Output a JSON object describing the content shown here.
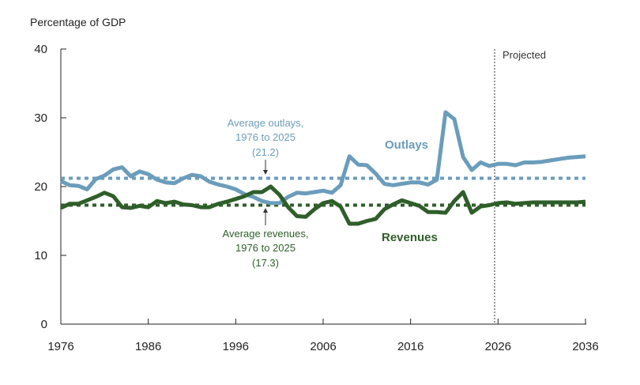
{
  "chart_data": {
    "type": "line",
    "ylabel": "Percentage of GDP",
    "xlim": [
      1976,
      2036
    ],
    "ylim": [
      0,
      40
    ],
    "xticks": [
      "1976",
      "1986",
      "1996",
      "2006",
      "2016",
      "2026",
      "2036"
    ],
    "yticks": [
      "0",
      "10",
      "20",
      "30",
      "40"
    ],
    "projected_label": "Projected",
    "projected_start": 2025.6,
    "colors": {
      "outlays": "#6b9dbb",
      "revenues": "#2f5e2a"
    },
    "x_start": 1976,
    "series": [
      {
        "name": "Outlays",
        "values": [
          20.8,
          20.2,
          20.1,
          19.6,
          21.1,
          21.6,
          22.5,
          22.8,
          21.5,
          22.2,
          21.8,
          21.0,
          20.6,
          20.5,
          21.2,
          21.7,
          21.5,
          20.7,
          20.3,
          20.0,
          19.6,
          18.9,
          18.5,
          17.9,
          17.6,
          17.6,
          18.5,
          19.1,
          19.0,
          19.2,
          19.4,
          19.1,
          20.2,
          24.4,
          23.2,
          23.1,
          21.9,
          20.4,
          20.2,
          20.4,
          20.6,
          20.6,
          20.3,
          21.0,
          30.8,
          29.8,
          24.3,
          22.4,
          23.5,
          23.0,
          23.3,
          23.3,
          23.1,
          23.5,
          23.5,
          23.6,
          23.8,
          24.0,
          24.2,
          24.3,
          24.4
        ]
      },
      {
        "name": "Revenues",
        "values": [
          16.9,
          17.5,
          17.5,
          18.0,
          18.5,
          19.1,
          18.6,
          17.0,
          16.9,
          17.2,
          17.0,
          17.9,
          17.6,
          17.8,
          17.4,
          17.3,
          17.0,
          17.0,
          17.5,
          17.8,
          18.2,
          18.6,
          19.2,
          19.2,
          20.0,
          18.8,
          17.0,
          15.7,
          15.6,
          16.7,
          17.6,
          17.9,
          17.1,
          14.6,
          14.6,
          15.0,
          15.3,
          16.7,
          17.4,
          18.0,
          17.6,
          17.2,
          16.3,
          16.3,
          16.2,
          17.9,
          19.2,
          16.2,
          17.1,
          17.3,
          17.6,
          17.7,
          17.5,
          17.6,
          17.7,
          17.7,
          17.7,
          17.7,
          17.7,
          17.7,
          17.8
        ]
      }
    ],
    "averages": [
      {
        "name": "Average outlays",
        "value": 21.2,
        "label": [
          "Average outlays,",
          "1976 to 2025",
          "(21.2)"
        ]
      },
      {
        "name": "Average revenues",
        "value": 17.3,
        "label": [
          "Average revenues,",
          "1976 to 2025",
          "(17.3)"
        ]
      }
    ],
    "series_labels": {
      "outlays": "Outlays",
      "revenues": "Revenues"
    }
  }
}
